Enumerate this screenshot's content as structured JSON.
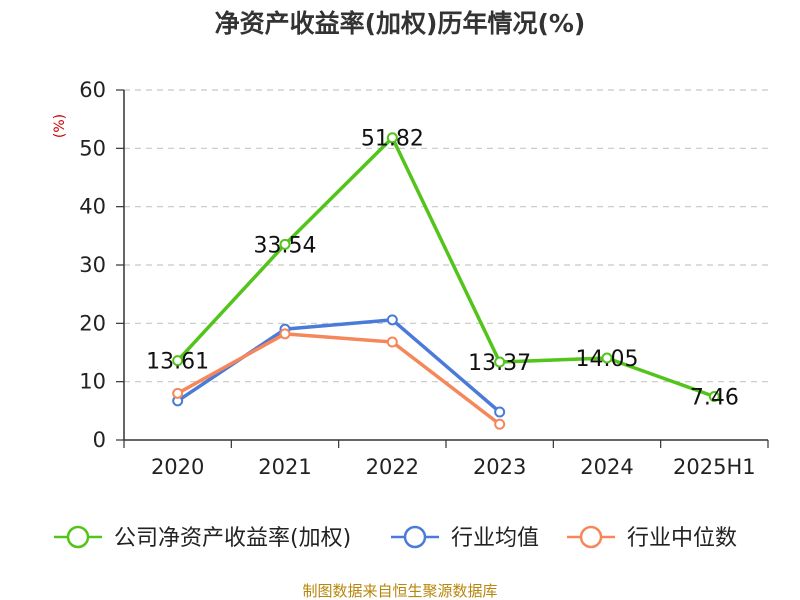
{
  "chart_data": {
    "type": "line",
    "title": "净资产收益率(加权)历年情况(%)",
    "ylabel": "(%)",
    "categories": [
      "2020",
      "2021",
      "2022",
      "2023",
      "2024",
      "2025H1"
    ],
    "ylim": [
      0,
      60
    ],
    "yticks": [
      0,
      10,
      20,
      30,
      40,
      50,
      60
    ],
    "grid": true,
    "legend_position": "bottom",
    "series": [
      {
        "name": "公司净资产收益率(加权)",
        "color": "#52c41a",
        "values": [
          13.61,
          33.54,
          51.82,
          13.37,
          14.05,
          7.46
        ],
        "labels": [
          "13.61",
          "33.54",
          "51.82",
          "13.37",
          "14.05",
          "7.46"
        ]
      },
      {
        "name": "行业均值",
        "color": "#4a7bd8",
        "values": [
          6.7,
          19.0,
          20.6,
          4.8,
          null,
          null
        ]
      },
      {
        "name": "行业中位数",
        "color": "#f5875a",
        "values": [
          8.0,
          18.2,
          16.8,
          2.7,
          null,
          null
        ]
      }
    ]
  },
  "source": "制图数据来自恒生聚源数据库"
}
